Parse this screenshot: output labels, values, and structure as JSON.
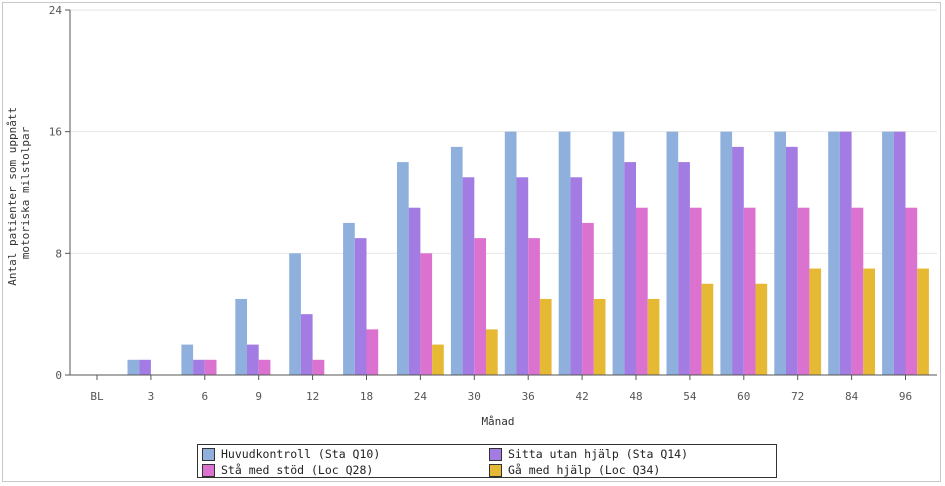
{
  "chart_data": {
    "type": "bar",
    "xlabel": "Månad",
    "ylabel": "Antal patienter som uppnått motoriska milstolpar",
    "ylabel_lines": [
      "Antal patienter som uppnått",
      "motoriska milstolpar"
    ],
    "ylim": [
      0,
      24
    ],
    "yticks": [
      0,
      8,
      16,
      24
    ],
    "grid": true,
    "legend_position": "bottom",
    "categories": [
      "BL",
      "3",
      "6",
      "9",
      "12",
      "18",
      "24",
      "30",
      "36",
      "42",
      "48",
      "54",
      "60",
      "72",
      "84",
      "96"
    ],
    "series": [
      {
        "name": "Huvudkontroll (Sta Q10)",
        "color": "#8fb0dc",
        "values": [
          0,
          1,
          2,
          5,
          8,
          10,
          14,
          15,
          16,
          16,
          16,
          16,
          16,
          16,
          16,
          16
        ]
      },
      {
        "name": "Sitta utan hjälp (Sta Q14)",
        "color": "#a27be3",
        "values": [
          0,
          1,
          1,
          2,
          4,
          9,
          11,
          13,
          13,
          13,
          14,
          14,
          15,
          15,
          16,
          16
        ]
      },
      {
        "name": "Stå med stöd (Loc Q28)",
        "color": "#dc72d0",
        "values": [
          0,
          0,
          1,
          1,
          1,
          3,
          8,
          9,
          9,
          10,
          11,
          11,
          11,
          11,
          11,
          11
        ]
      },
      {
        "name": "Gå med hjälp (Loc Q34)",
        "color": "#e6b934",
        "values": [
          0,
          0,
          0,
          0,
          0,
          0,
          2,
          3,
          5,
          5,
          5,
          6,
          6,
          7,
          7,
          7
        ]
      }
    ]
  }
}
